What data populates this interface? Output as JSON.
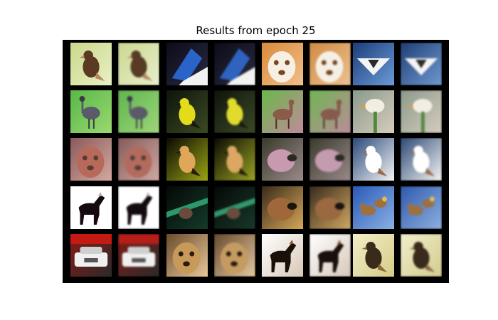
{
  "figure": {
    "title": "Results from epoch 25"
  },
  "grid": {
    "rows": 5,
    "cols": 8,
    "background": "#000000",
    "pairs": [
      [
        {
          "subject": "bird",
          "bg": [
            "#c9d98a",
            "#e9efc6"
          ],
          "fg": "#5a3a22",
          "accent": "#b38a5e",
          "shape": "bird"
        },
        {
          "subject": "bird-on-dark",
          "bg": [
            "#0c0c1a",
            "#2a2a44"
          ],
          "fg": "#2a64c8",
          "accent": "#f2f2f2",
          "shape": "beak"
        },
        {
          "subject": "dog",
          "bg": [
            "#d98a3a",
            "#f0c08a"
          ],
          "fg": "#f6f0e4",
          "accent": "#7a4420",
          "shape": "face"
        },
        {
          "subject": "airplane",
          "bg": [
            "#1c3e7a",
            "#6a9ad8"
          ],
          "fg": "#f4f4f4",
          "accent": "#2a2a2a",
          "shape": "plane"
        }
      ],
      [
        {
          "subject": "emu",
          "bg": [
            "#58b848",
            "#9ad870"
          ],
          "fg": "#5a5a6a",
          "accent": "#3a3a44",
          "shape": "tallbird"
        },
        {
          "subject": "yellow-bird",
          "bg": [
            "#0e140a",
            "#3a4a24"
          ],
          "fg": "#e2dc1a",
          "accent": "#1a1a10",
          "shape": "bird"
        },
        {
          "subject": "deer",
          "bg": [
            "#6ab84a",
            "#c08a9a"
          ],
          "fg": "#8a5a4a",
          "accent": "#4a2a22",
          "shape": "deer"
        },
        {
          "subject": "white-bird",
          "bg": [
            "#8a9a8a",
            "#d6ccbc"
          ],
          "fg": "#f2eee4",
          "accent": "#4e8a3a",
          "shape": "perch"
        }
      ],
      [
        {
          "subject": "bird-closeup",
          "bg": [
            "#8a5a5a",
            "#d4a8a0"
          ],
          "fg": "#b86a5a",
          "accent": "#5a3a38",
          "shape": "face"
        },
        {
          "subject": "bird-on-green",
          "bg": [
            "#0a0a04",
            "#9aa414"
          ],
          "fg": "#e0a65a",
          "accent": "#2a1a0a",
          "shape": "bird"
        },
        {
          "subject": "kiwi-bird",
          "bg": [
            "#3a3a2a",
            "#9a8a8a"
          ],
          "fg": "#c89ab0",
          "accent": "#2a2a22",
          "shape": "round"
        },
        {
          "subject": "snow-bird",
          "bg": [
            "#2a4a7a",
            "#f4f4f4"
          ],
          "fg": "#ffffff",
          "accent": "#a06a48",
          "shape": "bird"
        }
      ],
      [
        {
          "subject": "horse",
          "bg": [
            "#ffffff",
            "#ffffff"
          ],
          "fg": "#140a10",
          "accent": "#c0a4b4",
          "shape": "horse"
        },
        {
          "subject": "bird-on-branch",
          "bg": [
            "#050805",
            "#143a2a"
          ],
          "fg": "#6a4a3a",
          "accent": "#2a9a6a",
          "shape": "branch"
        },
        {
          "subject": "frog",
          "bg": [
            "#3a2a1a",
            "#d4a858"
          ],
          "fg": "#a0683a",
          "accent": "#1a1410",
          "shape": "round"
        },
        {
          "subject": "ducks",
          "bg": [
            "#2a5ab8",
            "#8ab0e4"
          ],
          "fg": "#a0703a",
          "accent": "#e4c04a",
          "shape": "ducks"
        }
      ],
      [
        {
          "subject": "car",
          "bg": [
            "#8a1a14",
            "#2a2a2a"
          ],
          "fg": "#f0f0f0",
          "accent": "#c41a14",
          "shape": "car"
        },
        {
          "subject": "cat",
          "bg": [
            "#6a4a2a",
            "#e6c89a"
          ],
          "fg": "#c89a5a",
          "accent": "#2a1a10",
          "shape": "face"
        },
        {
          "subject": "horse-rider",
          "bg": [
            "#ffffff",
            "#d8c8b8"
          ],
          "fg": "#1a100a",
          "accent": "#8a5a3a",
          "shape": "horse"
        },
        {
          "subject": "bird-on-sand",
          "bg": [
            "#f2eec8",
            "#d6cc88"
          ],
          "fg": "#3a2a1a",
          "accent": "#8a6a3a",
          "shape": "bird"
        }
      ]
    ]
  }
}
